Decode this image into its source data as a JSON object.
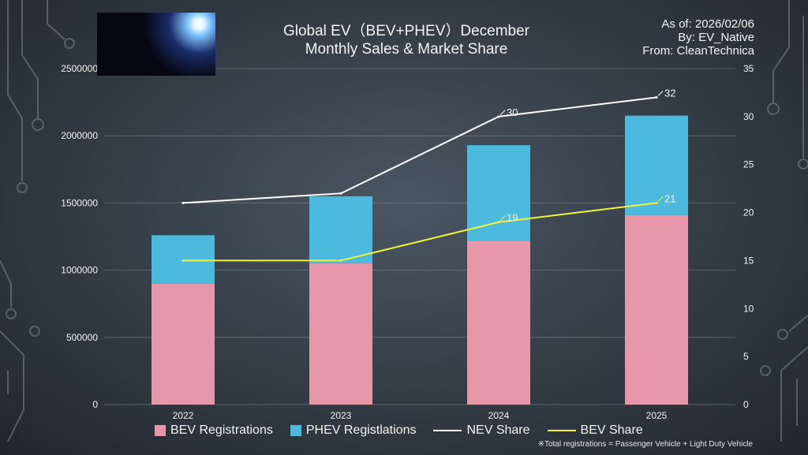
{
  "title_line1": "Global EV（BEV+PHEV）December",
  "title_line2": "Monthly Sales & Market Share",
  "meta": {
    "as_of": "As of: 2026/02/06",
    "by": "By: EV_Native",
    "from": "From: CleanTechnica"
  },
  "legend": {
    "bev_reg": "BEV Registrations",
    "phev_reg": "PHEV Registlations",
    "nev_share": "NEV Share",
    "bev_share": "BEV Share"
  },
  "footnote": "※Total registrations = Passenger Vehicle + Light Duty Vehicle",
  "chart_data": {
    "type": "bar",
    "stacked": true,
    "categories": [
      "2022",
      "2023",
      "2024",
      "2025"
    ],
    "series": [
      {
        "name": "BEV Registrations",
        "type": "bar",
        "axis": "left",
        "color": "#e797aa",
        "values": [
          900000,
          1050000,
          1220000,
          1410000
        ]
      },
      {
        "name": "PHEV Registlations",
        "type": "bar",
        "axis": "left",
        "color": "#4bbadc",
        "values": [
          360000,
          500000,
          710000,
          740000
        ]
      },
      {
        "name": "NEV Share",
        "type": "line",
        "axis": "right",
        "color": "#ffffff",
        "values": [
          21,
          22,
          30,
          32
        ],
        "labels": [
          "",
          "",
          "30",
          "32"
        ]
      },
      {
        "name": "BEV Share",
        "type": "line",
        "axis": "right",
        "color": "#f2f23a",
        "values": [
          15,
          15,
          19,
          21
        ],
        "labels": [
          "",
          "",
          "19",
          "21"
        ]
      }
    ],
    "ylim_left": [
      0,
      2500000
    ],
    "yticks_left": [
      "0",
      "500000",
      "1000000",
      "1500000",
      "2000000",
      "2500000"
    ],
    "ylim_right": [
      0,
      35
    ],
    "yticks_right": [
      "0",
      "5",
      "10",
      "15",
      "20",
      "25",
      "30",
      "35"
    ],
    "grid": true,
    "legend_position": "bottom"
  }
}
